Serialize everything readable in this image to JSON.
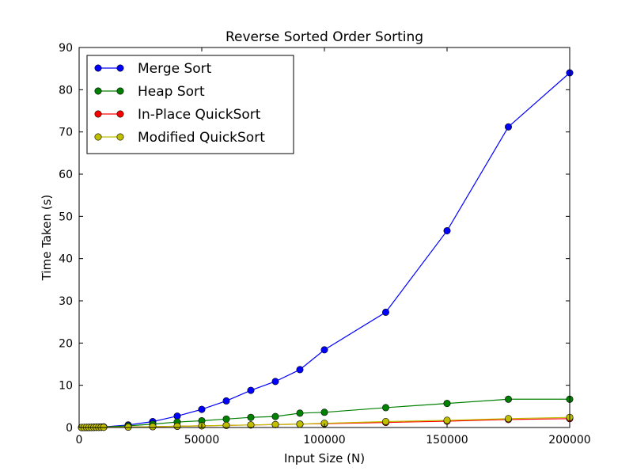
{
  "chart_data": {
    "type": "line",
    "title": "Reverse Sorted Order Sorting",
    "xlabel": "Input Size (N)",
    "ylabel": "Time Taken (s)",
    "xlim": [
      0,
      200000
    ],
    "ylim": [
      0,
      90
    ],
    "xticks": [
      0,
      50000,
      100000,
      150000,
      200000
    ],
    "yticks": [
      0,
      10,
      20,
      30,
      40,
      50,
      60,
      70,
      80,
      90
    ],
    "grid": false,
    "legend_position": "top-left",
    "x": [
      1000,
      2000,
      3000,
      4000,
      5000,
      6000,
      7000,
      8000,
      9000,
      10000,
      20000,
      30000,
      40000,
      50000,
      60000,
      70000,
      80000,
      90000,
      100000,
      125000,
      150000,
      175000,
      200000
    ],
    "series": [
      {
        "name": "Merge Sort",
        "color": "#0000ff",
        "values": [
          0.01,
          0.02,
          0.03,
          0.04,
          0.05,
          0.06,
          0.08,
          0.1,
          0.12,
          0.15,
          0.6,
          1.4,
          2.7,
          4.3,
          6.3,
          8.8,
          10.9,
          13.7,
          18.4,
          27.3,
          46.6,
          71.2,
          84.0
        ]
      },
      {
        "name": "Heap Sort",
        "color": "#008000",
        "values": [
          0.01,
          0.02,
          0.03,
          0.04,
          0.05,
          0.06,
          0.07,
          0.08,
          0.09,
          0.1,
          0.4,
          0.8,
          1.3,
          1.6,
          2.0,
          2.4,
          2.6,
          3.4,
          3.6,
          4.7,
          5.7,
          6.7,
          6.7
        ]
      },
      {
        "name": "In-Place QuickSort",
        "color": "#ff0000",
        "values": [
          0.01,
          0.01,
          0.02,
          0.02,
          0.03,
          0.03,
          0.04,
          0.04,
          0.05,
          0.05,
          0.1,
          0.2,
          0.3,
          0.4,
          0.5,
          0.6,
          0.7,
          0.8,
          0.9,
          1.2,
          1.5,
          1.9,
          2.1
        ]
      },
      {
        "name": "Modified QuickSort",
        "color": "#bfbf00",
        "values": [
          0.01,
          0.01,
          0.02,
          0.02,
          0.03,
          0.03,
          0.04,
          0.04,
          0.05,
          0.05,
          0.1,
          0.2,
          0.3,
          0.4,
          0.5,
          0.6,
          0.7,
          0.8,
          1.0,
          1.4,
          1.7,
          2.1,
          2.4
        ]
      }
    ]
  }
}
